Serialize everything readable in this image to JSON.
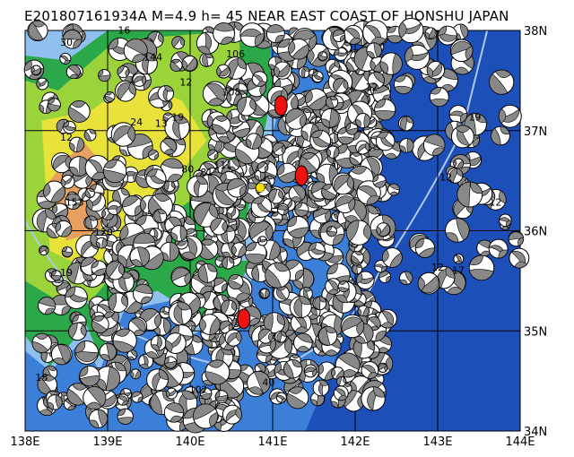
{
  "title": "E201807161934A M=4.9 h= 45 NEAR EAST COAST OF HONSHU JAPAN",
  "map": {
    "lon_range": [
      138,
      144
    ],
    "lat_range": [
      34,
      38
    ],
    "lon_ticks": [
      "138E",
      "139E",
      "140E",
      "141E",
      "142E",
      "143E",
      "144E"
    ],
    "lat_ticks": [
      "34N",
      "35N",
      "36N",
      "37N",
      "38N"
    ],
    "colors": {
      "ocean_deep": "#1d4fb8",
      "ocean": "#3b7fd8",
      "shelf": "#8fc0ee",
      "lowland": "#2aa84a",
      "midland": "#9bd43a",
      "highland": "#e8e23a",
      "mountain": "#e8a060",
      "beachball": "#888888",
      "event": "#ee1111",
      "epicenter": "#f0e000",
      "trench": "#b0c8f0"
    },
    "highlighted_events": [
      {
        "lon": 141.1,
        "lat": 37.25
      },
      {
        "lon": 141.35,
        "lat": 36.55
      },
      {
        "lon": 140.65,
        "lat": 35.12
      }
    ],
    "epicenter": {
      "lon": 140.85,
      "lat": 36.43
    },
    "depth_labels": [
      {
        "text": "30",
        "lon": 138.5,
        "lat": 37.85
      },
      {
        "text": "16",
        "lon": 139.2,
        "lat": 37.97
      },
      {
        "text": "144",
        "lon": 139.55,
        "lat": 37.7
      },
      {
        "text": "106",
        "lon": 140.55,
        "lat": 37.73
      },
      {
        "text": "12",
        "lon": 139.95,
        "lat": 37.45
      },
      {
        "text": "108",
        "lon": 140.5,
        "lat": 37.35
      },
      {
        "text": "24",
        "lon": 139.35,
        "lat": 37.05
      },
      {
        "text": "13",
        "lon": 139.65,
        "lat": 37.04
      },
      {
        "text": "19",
        "lon": 139.85,
        "lat": 37.1
      },
      {
        "text": "12",
        "lon": 138.5,
        "lat": 36.9
      },
      {
        "text": "80",
        "lon": 139.97,
        "lat": 36.58
      },
      {
        "text": "81",
        "lon": 140.2,
        "lat": 36.55
      },
      {
        "text": "111",
        "lon": 140.4,
        "lat": 36.62
      },
      {
        "text": "153",
        "lon": 138.6,
        "lat": 36.25
      },
      {
        "text": "120",
        "lon": 138.95,
        "lat": 35.95
      },
      {
        "text": "19",
        "lon": 138.5,
        "lat": 35.55
      },
      {
        "text": "102",
        "lon": 140.1,
        "lat": 34.38
      },
      {
        "text": "40",
        "lon": 140.95,
        "lat": 34.45
      },
      {
        "text": "12",
        "lon": 142.2,
        "lat": 37.4
      },
      {
        "text": "12",
        "lon": 143.1,
        "lat": 36.5
      },
      {
        "text": "12",
        "lon": 143.7,
        "lat": 36.25
      },
      {
        "text": "12",
        "lon": 143.0,
        "lat": 35.6
      },
      {
        "text": "17",
        "lon": 143.25,
        "lat": 35.57
      },
      {
        "text": "19",
        "lon": 143.45,
        "lat": 37.1
      },
      {
        "text": "18",
        "lon": 138.2,
        "lat": 34.5
      }
    ]
  }
}
